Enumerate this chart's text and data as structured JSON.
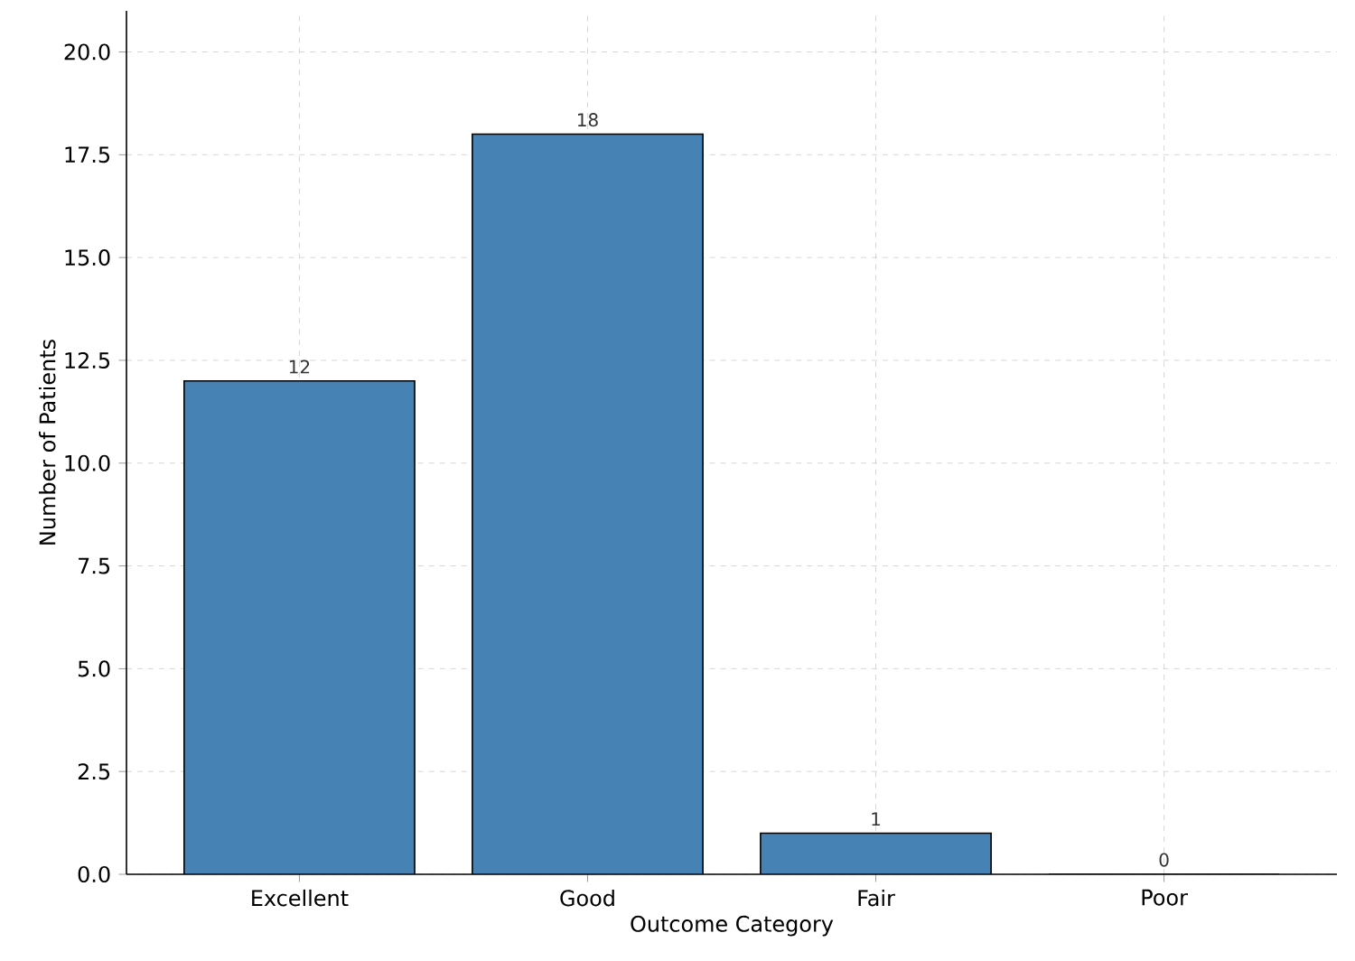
{
  "chart_data": {
    "type": "bar",
    "xlabel": "Outcome Category",
    "ylabel": "Number of Patients",
    "categories": [
      "Excellent",
      "Good",
      "Fair",
      "Poor"
    ],
    "values": [
      12,
      18,
      1,
      0
    ],
    "color": "#4682b4",
    "ylim": [
      0,
      21
    ],
    "yticks": [
      {
        "value": 0,
        "label": "0.0"
      },
      {
        "value": 2.5,
        "label": "2.5"
      },
      {
        "value": 5,
        "label": "5.0"
      },
      {
        "value": 7.5,
        "label": "7.5"
      },
      {
        "value": 10,
        "label": "10.0"
      },
      {
        "value": 12.5,
        "label": "12.5"
      },
      {
        "value": 15,
        "label": "15.0"
      },
      {
        "value": 17.5,
        "label": "17.5"
      },
      {
        "value": 20,
        "label": "20.0"
      }
    ],
    "grid": true,
    "data_labels": true
  }
}
